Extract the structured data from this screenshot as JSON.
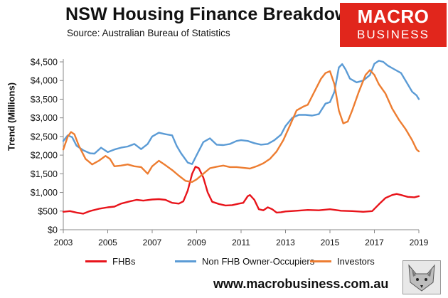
{
  "header": {
    "title": "NSW Housing Finance Breakdown",
    "subtitle": "Source: Australian Bureau of Statistics"
  },
  "logo": {
    "line1": "MACRO",
    "line2": "BUSINESS",
    "color": "#e1261c"
  },
  "footer": {
    "url": "www.macrobusiness.com.au"
  },
  "chart_data": {
    "type": "line",
    "ylabel": "Trend (Millions)",
    "xlabel": "",
    "xlim": [
      2003,
      2019
    ],
    "ylim": [
      0,
      4500
    ],
    "x_ticks": [
      "2003",
      "2005",
      "2007",
      "2009",
      "2011",
      "2013",
      "2015",
      "2017",
      "2019"
    ],
    "y_ticks": [
      "$0",
      "$500",
      "$1,000",
      "$1,500",
      "$2,000",
      "$2,500",
      "$3,000",
      "$3,500",
      "$4,000",
      "$4,500"
    ],
    "grid": false,
    "legend_position": "bottom",
    "series": [
      {
        "name": "FHBs",
        "color": "#e8141b",
        "points": [
          [
            2003.0,
            480
          ],
          [
            2003.3,
            500
          ],
          [
            2003.6,
            460
          ],
          [
            2003.9,
            430
          ],
          [
            2004.2,
            500
          ],
          [
            2004.6,
            560
          ],
          [
            2005.0,
            600
          ],
          [
            2005.3,
            620
          ],
          [
            2005.6,
            700
          ],
          [
            2006.0,
            760
          ],
          [
            2006.3,
            800
          ],
          [
            2006.6,
            780
          ],
          [
            2007.0,
            810
          ],
          [
            2007.3,
            820
          ],
          [
            2007.6,
            800
          ],
          [
            2007.9,
            720
          ],
          [
            2008.2,
            700
          ],
          [
            2008.4,
            760
          ],
          [
            2008.6,
            1050
          ],
          [
            2008.8,
            1500
          ],
          [
            2008.95,
            1690
          ],
          [
            2009.1,
            1650
          ],
          [
            2009.3,
            1400
          ],
          [
            2009.5,
            1000
          ],
          [
            2009.7,
            750
          ],
          [
            2010.0,
            690
          ],
          [
            2010.3,
            650
          ],
          [
            2010.6,
            660
          ],
          [
            2010.9,
            700
          ],
          [
            2011.1,
            720
          ],
          [
            2011.3,
            900
          ],
          [
            2011.4,
            930
          ],
          [
            2011.6,
            800
          ],
          [
            2011.8,
            550
          ],
          [
            2012.0,
            520
          ],
          [
            2012.2,
            600
          ],
          [
            2012.4,
            550
          ],
          [
            2012.6,
            460
          ],
          [
            2012.8,
            470
          ],
          [
            2013.0,
            490
          ],
          [
            2013.5,
            510
          ],
          [
            2014.0,
            530
          ],
          [
            2014.5,
            520
          ],
          [
            2015.0,
            550
          ],
          [
            2015.5,
            510
          ],
          [
            2016.0,
            500
          ],
          [
            2016.5,
            480
          ],
          [
            2016.9,
            500
          ],
          [
            2017.2,
            680
          ],
          [
            2017.5,
            850
          ],
          [
            2017.8,
            930
          ],
          [
            2018.0,
            960
          ],
          [
            2018.2,
            930
          ],
          [
            2018.5,
            880
          ],
          [
            2018.8,
            870
          ],
          [
            2019.0,
            900
          ]
        ]
      },
      {
        "name": "Non FHB Owner-Occupiers",
        "color": "#5b9bd5",
        "points": [
          [
            2003.0,
            2380
          ],
          [
            2003.2,
            2530
          ],
          [
            2003.4,
            2480
          ],
          [
            2003.6,
            2250
          ],
          [
            2003.9,
            2130
          ],
          [
            2004.2,
            2050
          ],
          [
            2004.4,
            2040
          ],
          [
            2004.7,
            2200
          ],
          [
            2005.0,
            2080
          ],
          [
            2005.3,
            2150
          ],
          [
            2005.6,
            2200
          ],
          [
            2005.9,
            2230
          ],
          [
            2006.2,
            2300
          ],
          [
            2006.5,
            2160
          ],
          [
            2006.8,
            2300
          ],
          [
            2007.0,
            2500
          ],
          [
            2007.3,
            2600
          ],
          [
            2007.6,
            2560
          ],
          [
            2007.9,
            2530
          ],
          [
            2008.1,
            2250
          ],
          [
            2008.3,
            2050
          ],
          [
            2008.6,
            1800
          ],
          [
            2008.8,
            1760
          ],
          [
            2009.0,
            2000
          ],
          [
            2009.3,
            2350
          ],
          [
            2009.6,
            2450
          ],
          [
            2009.9,
            2280
          ],
          [
            2010.2,
            2270
          ],
          [
            2010.5,
            2300
          ],
          [
            2010.8,
            2380
          ],
          [
            2011.0,
            2400
          ],
          [
            2011.3,
            2380
          ],
          [
            2011.6,
            2320
          ],
          [
            2011.9,
            2280
          ],
          [
            2012.2,
            2300
          ],
          [
            2012.5,
            2400
          ],
          [
            2012.8,
            2550
          ],
          [
            2013.0,
            2780
          ],
          [
            2013.3,
            3000
          ],
          [
            2013.6,
            3080
          ],
          [
            2013.9,
            3080
          ],
          [
            2014.2,
            3060
          ],
          [
            2014.5,
            3100
          ],
          [
            2014.8,
            3380
          ],
          [
            2015.0,
            3420
          ],
          [
            2015.2,
            3700
          ],
          [
            2015.4,
            4350
          ],
          [
            2015.55,
            4440
          ],
          [
            2015.7,
            4300
          ],
          [
            2015.9,
            4050
          ],
          [
            2016.2,
            3950
          ],
          [
            2016.5,
            4000
          ],
          [
            2016.8,
            4150
          ],
          [
            2017.0,
            4450
          ],
          [
            2017.2,
            4530
          ],
          [
            2017.4,
            4500
          ],
          [
            2017.6,
            4400
          ],
          [
            2017.9,
            4300
          ],
          [
            2018.2,
            4200
          ],
          [
            2018.5,
            3900
          ],
          [
            2018.7,
            3700
          ],
          [
            2018.9,
            3600
          ],
          [
            2019.0,
            3500
          ]
        ]
      },
      {
        "name": "Investors",
        "color": "#ed7d31",
        "points": [
          [
            2003.0,
            2150
          ],
          [
            2003.2,
            2500
          ],
          [
            2003.35,
            2620
          ],
          [
            2003.5,
            2560
          ],
          [
            2003.7,
            2250
          ],
          [
            2004.0,
            1900
          ],
          [
            2004.3,
            1750
          ],
          [
            2004.6,
            1850
          ],
          [
            2004.9,
            1980
          ],
          [
            2005.1,
            1900
          ],
          [
            2005.3,
            1700
          ],
          [
            2005.6,
            1720
          ],
          [
            2005.9,
            1750
          ],
          [
            2006.2,
            1700
          ],
          [
            2006.5,
            1680
          ],
          [
            2006.8,
            1500
          ],
          [
            2007.0,
            1700
          ],
          [
            2007.3,
            1850
          ],
          [
            2007.6,
            1730
          ],
          [
            2007.9,
            1600
          ],
          [
            2008.2,
            1450
          ],
          [
            2008.5,
            1310
          ],
          [
            2008.8,
            1280
          ],
          [
            2009.0,
            1350
          ],
          [
            2009.3,
            1500
          ],
          [
            2009.6,
            1650
          ],
          [
            2009.9,
            1690
          ],
          [
            2010.2,
            1720
          ],
          [
            2010.5,
            1680
          ],
          [
            2010.8,
            1680
          ],
          [
            2011.1,
            1660
          ],
          [
            2011.4,
            1640
          ],
          [
            2011.7,
            1700
          ],
          [
            2012.0,
            1780
          ],
          [
            2012.3,
            1900
          ],
          [
            2012.6,
            2100
          ],
          [
            2012.9,
            2400
          ],
          [
            2013.2,
            2800
          ],
          [
            2013.5,
            3200
          ],
          [
            2013.8,
            3300
          ],
          [
            2014.0,
            3350
          ],
          [
            2014.3,
            3700
          ],
          [
            2014.6,
            4050
          ],
          [
            2014.8,
            4200
          ],
          [
            2015.0,
            4250
          ],
          [
            2015.2,
            3900
          ],
          [
            2015.4,
            3200
          ],
          [
            2015.6,
            2850
          ],
          [
            2015.8,
            2900
          ],
          [
            2016.0,
            3200
          ],
          [
            2016.3,
            3700
          ],
          [
            2016.6,
            4150
          ],
          [
            2016.8,
            4280
          ],
          [
            2017.0,
            4150
          ],
          [
            2017.2,
            3900
          ],
          [
            2017.5,
            3650
          ],
          [
            2017.8,
            3250
          ],
          [
            2018.1,
            2950
          ],
          [
            2018.4,
            2700
          ],
          [
            2018.7,
            2400
          ],
          [
            2018.9,
            2150
          ],
          [
            2019.0,
            2100
          ]
        ]
      }
    ]
  }
}
